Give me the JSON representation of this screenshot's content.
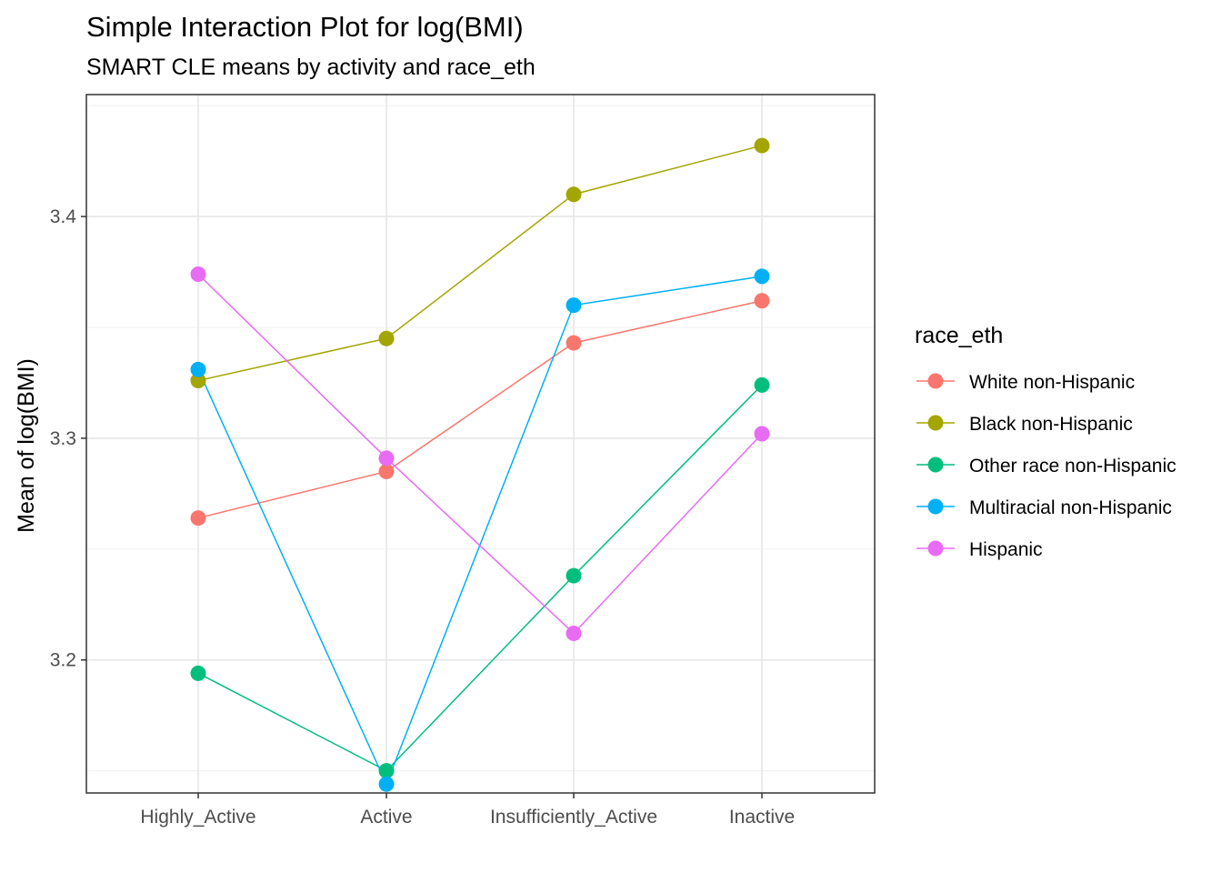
{
  "chart_data": {
    "type": "line",
    "title": "Simple Interaction Plot for log(BMI)",
    "subtitle": "SMART CLE means by activity and race_eth",
    "xlabel": "",
    "ylabel": "Mean of log(BMI)",
    "categories": [
      "Highly_Active",
      "Active",
      "Insufficiently_Active",
      "Inactive"
    ],
    "ylim": [
      3.14,
      3.455
    ],
    "yticks": [
      3.2,
      3.3,
      3.4
    ],
    "grid": true,
    "legend_title": "race_eth",
    "legend_position": "right",
    "series": [
      {
        "name": "White non-Hispanic",
        "color": "#F8766D",
        "values": [
          3.264,
          3.285,
          3.343,
          3.362
        ]
      },
      {
        "name": "Black non-Hispanic",
        "color": "#A3A500",
        "values": [
          3.326,
          3.345,
          3.41,
          3.432
        ]
      },
      {
        "name": "Other race non-Hispanic",
        "color": "#00BF7D",
        "values": [
          3.194,
          3.15,
          3.238,
          3.324
        ]
      },
      {
        "name": "Multiracial non-Hispanic",
        "color": "#00B0F6",
        "values": [
          3.331,
          3.144,
          3.36,
          3.373
        ]
      },
      {
        "name": "Hispanic",
        "color": "#E76BF3",
        "values": [
          3.374,
          3.291,
          3.212,
          3.302
        ]
      }
    ]
  }
}
